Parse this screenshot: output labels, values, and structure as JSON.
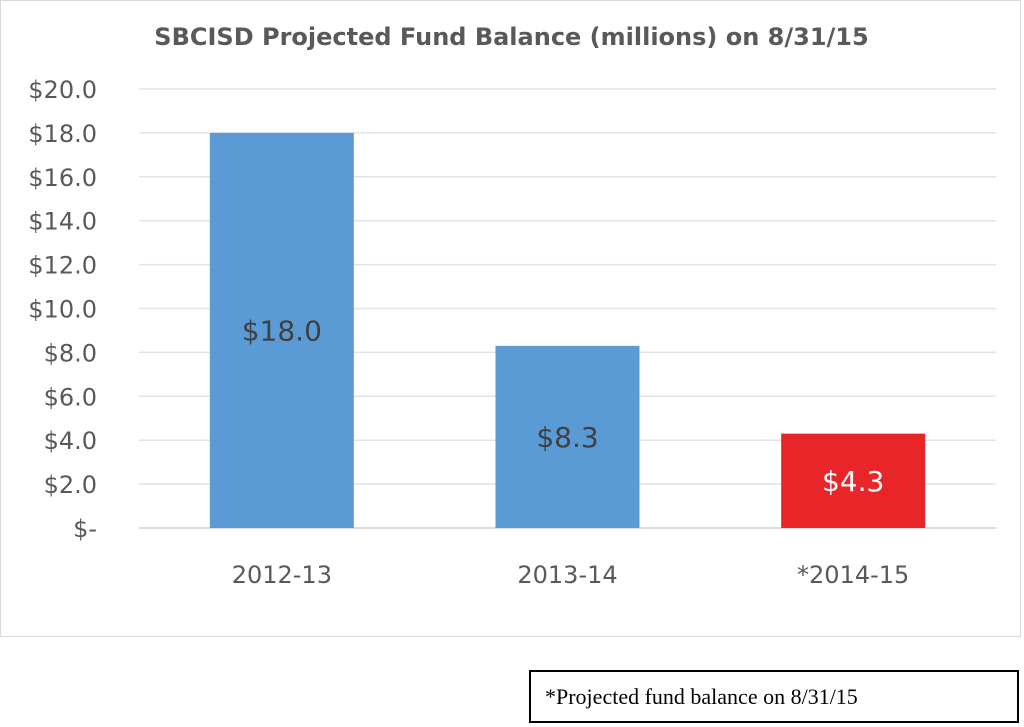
{
  "chart_data": {
    "type": "bar",
    "title": "SBCISD Projected Fund Balance (millions) on 8/31/15",
    "categories": [
      "2012-13",
      "2013-14",
      "*2014-15"
    ],
    "values": [
      18.0,
      8.3,
      4.3
    ],
    "data_labels": [
      "$18.0",
      "$8.3",
      "$4.3"
    ],
    "bar_colors": [
      "#5b9bd5",
      "#5b9bd5",
      "#e8262a"
    ],
    "ylim": [
      0,
      20
    ],
    "yticks": [
      {
        "value": 0,
        "label": "$-"
      },
      {
        "value": 2,
        "label": "$2.0"
      },
      {
        "value": 4,
        "label": "$4.0"
      },
      {
        "value": 6,
        "label": "$6.0"
      },
      {
        "value": 8,
        "label": "$8.0"
      },
      {
        "value": 10,
        "label": "$10.0"
      },
      {
        "value": 12,
        "label": "$12.0"
      },
      {
        "value": 14,
        "label": "$14.0"
      },
      {
        "value": 16,
        "label": "$16.0"
      },
      {
        "value": 18,
        "label": "$18.0"
      },
      {
        "value": 20,
        "label": "$20.0"
      }
    ],
    "xlabel": "",
    "ylabel": "",
    "grid": true,
    "legend": "none"
  },
  "footnote": "*Projected fund balance on 8/31/15"
}
